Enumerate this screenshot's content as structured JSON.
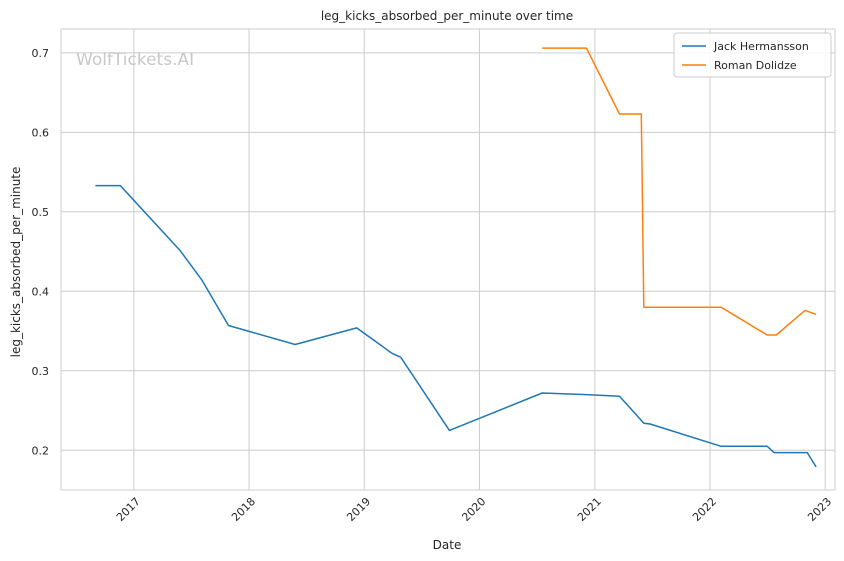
{
  "chart_data": {
    "type": "line",
    "title": "leg_kicks_absorbed_per_minute over time",
    "xlabel": "Date",
    "ylabel": "leg_kicks_absorbed_per_minute",
    "watermark": "WolfTickets.AI",
    "legend_position": "top-right",
    "grid": true,
    "xlim": [
      "2016-05-15",
      "2023-02-01"
    ],
    "ylim": [
      0.15,
      0.73
    ],
    "x_ticks": [
      {
        "date": "2017-01-01",
        "label": "2017"
      },
      {
        "date": "2018-01-01",
        "label": "2018"
      },
      {
        "date": "2019-01-01",
        "label": "2019"
      },
      {
        "date": "2020-01-01",
        "label": "2020"
      },
      {
        "date": "2021-01-01",
        "label": "2021"
      },
      {
        "date": "2022-01-01",
        "label": "2022"
      },
      {
        "date": "2023-01-01",
        "label": "2023"
      }
    ],
    "y_ticks": [
      {
        "value": 0.2,
        "label": "0.2"
      },
      {
        "value": 0.3,
        "label": "0.3"
      },
      {
        "value": 0.4,
        "label": "0.4"
      },
      {
        "value": 0.5,
        "label": "0.5"
      },
      {
        "value": 0.6,
        "label": "0.6"
      },
      {
        "value": 0.7,
        "label": "0.7"
      }
    ],
    "series": [
      {
        "name": "Jack Hermansson",
        "color": "#1f77b4",
        "points": [
          {
            "x": "2016-09-01",
            "y": 0.533
          },
          {
            "x": "2016-11-19",
            "y": 0.533
          },
          {
            "x": "2017-05-28",
            "y": 0.451
          },
          {
            "x": "2017-08-05",
            "y": 0.414
          },
          {
            "x": "2017-10-28",
            "y": 0.357
          },
          {
            "x": "2018-05-27",
            "y": 0.333
          },
          {
            "x": "2018-12-08",
            "y": 0.354
          },
          {
            "x": "2019-03-30",
            "y": 0.322
          },
          {
            "x": "2019-04-27",
            "y": 0.317
          },
          {
            "x": "2019-09-28",
            "y": 0.225
          },
          {
            "x": "2020-07-18",
            "y": 0.272
          },
          {
            "x": "2020-12-05",
            "y": 0.27
          },
          {
            "x": "2021-03-20",
            "y": 0.268
          },
          {
            "x": "2021-06-05",
            "y": 0.234
          },
          {
            "x": "2021-06-25",
            "y": 0.233
          },
          {
            "x": "2022-02-05",
            "y": 0.205
          },
          {
            "x": "2022-07-01",
            "y": 0.205
          },
          {
            "x": "2022-07-23",
            "y": 0.197
          },
          {
            "x": "2022-11-05",
            "y": 0.197
          },
          {
            "x": "2022-12-03",
            "y": 0.179
          }
        ]
      },
      {
        "name": "Roman Dolidze",
        "color": "#ff7f0e",
        "points": [
          {
            "x": "2020-07-18",
            "y": 0.706
          },
          {
            "x": "2020-12-05",
            "y": 0.706
          },
          {
            "x": "2021-03-20",
            "y": 0.623
          },
          {
            "x": "2021-05-28",
            "y": 0.623
          },
          {
            "x": "2021-06-05",
            "y": 0.38
          },
          {
            "x": "2022-02-05",
            "y": 0.38
          },
          {
            "x": "2022-07-01",
            "y": 0.345
          },
          {
            "x": "2022-07-30",
            "y": 0.345
          },
          {
            "x": "2022-10-29",
            "y": 0.376
          },
          {
            "x": "2022-12-03",
            "y": 0.371
          }
        ]
      }
    ]
  }
}
